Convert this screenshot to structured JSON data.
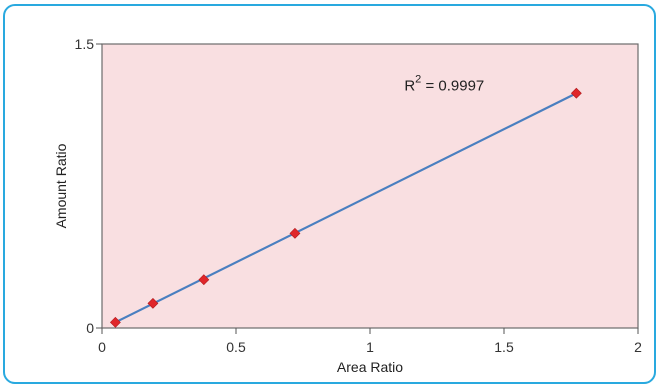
{
  "chart_data": {
    "type": "scatter",
    "xlabel": "Area Ratio",
    "ylabel": "Amount Ratio",
    "xlim": [
      0,
      2
    ],
    "ylim": [
      0,
      1.5
    ],
    "x_ticks": [
      "0",
      "0.5",
      "1",
      "1.5",
      "2"
    ],
    "y_ticks": [
      "0",
      "1.5"
    ],
    "plot_background": "#f9dfe1",
    "point_color": "#e0262a",
    "line_color": "#4a7fc0",
    "points": [
      {
        "x": 0.05,
        "y": 0.03
      },
      {
        "x": 0.19,
        "y": 0.13
      },
      {
        "x": 0.38,
        "y": 0.255
      },
      {
        "x": 0.72,
        "y": 0.5
      },
      {
        "x": 1.77,
        "y": 1.24
      }
    ],
    "trendline": {
      "from": [
        0.05,
        0.03
      ],
      "to": [
        1.77,
        1.24
      ]
    },
    "annotation": {
      "base": "R",
      "sup": "2",
      "text": " = 0.9997",
      "at": [
        1.24,
        1.28
      ]
    }
  }
}
